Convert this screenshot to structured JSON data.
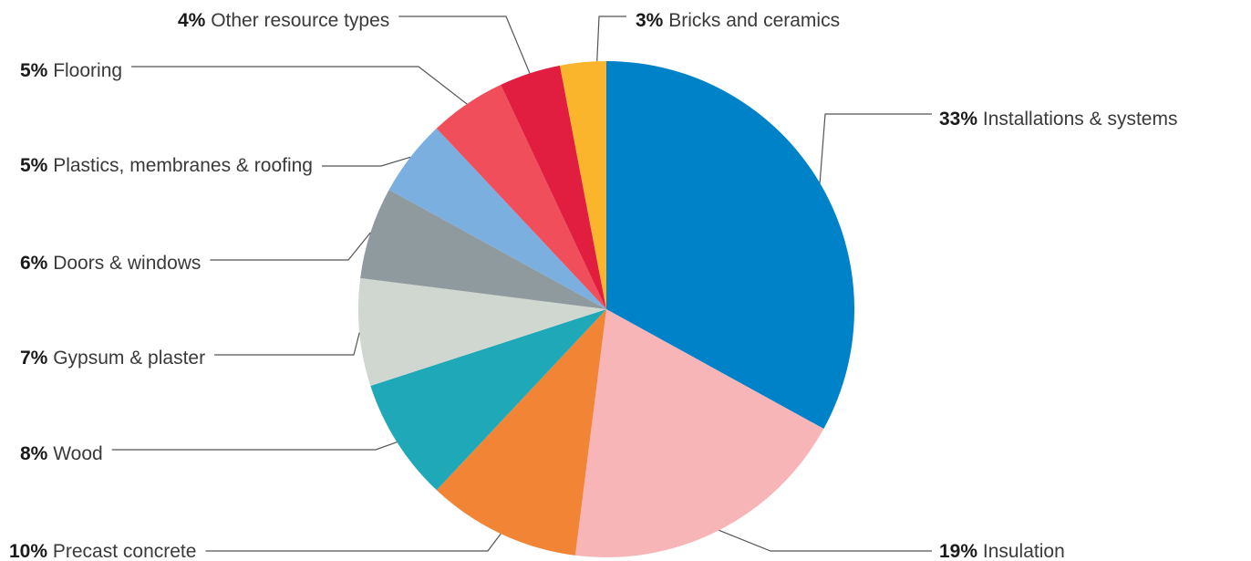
{
  "chart_data": {
    "type": "pie",
    "start_angle_deg": 0,
    "direction": "clockwise",
    "slices": [
      {
        "label": "Installations & systems",
        "value": 33,
        "pct_text": "33%",
        "color": "#0082c8"
      },
      {
        "label": "Insulation",
        "value": 19,
        "pct_text": "19%",
        "color": "#f7b5b8"
      },
      {
        "label": "Precast concrete",
        "value": 10,
        "pct_text": "10%",
        "color": "#f18535"
      },
      {
        "label": "Wood",
        "value": 8,
        "pct_text": "8%",
        "color": "#1fa8b8"
      },
      {
        "label": "Gypsum & plaster",
        "value": 7,
        "pct_text": "7%",
        "color": "#d0d6d0"
      },
      {
        "label": "Doors & windows",
        "value": 6,
        "pct_text": "6%",
        "color": "#8f9a9f"
      },
      {
        "label": "Plastics, membranes & roofing",
        "value": 5,
        "pct_text": "5%",
        "color": "#7aafdf"
      },
      {
        "label": "Flooring",
        "value": 5,
        "pct_text": "5%",
        "color": "#ef4e5a"
      },
      {
        "label": "Other resource types",
        "value": 4,
        "pct_text": "4%",
        "color": "#e11d40"
      },
      {
        "label": "Bricks and ceramics",
        "value": 3,
        "pct_text": "3%",
        "color": "#fbb52c"
      }
    ]
  }
}
